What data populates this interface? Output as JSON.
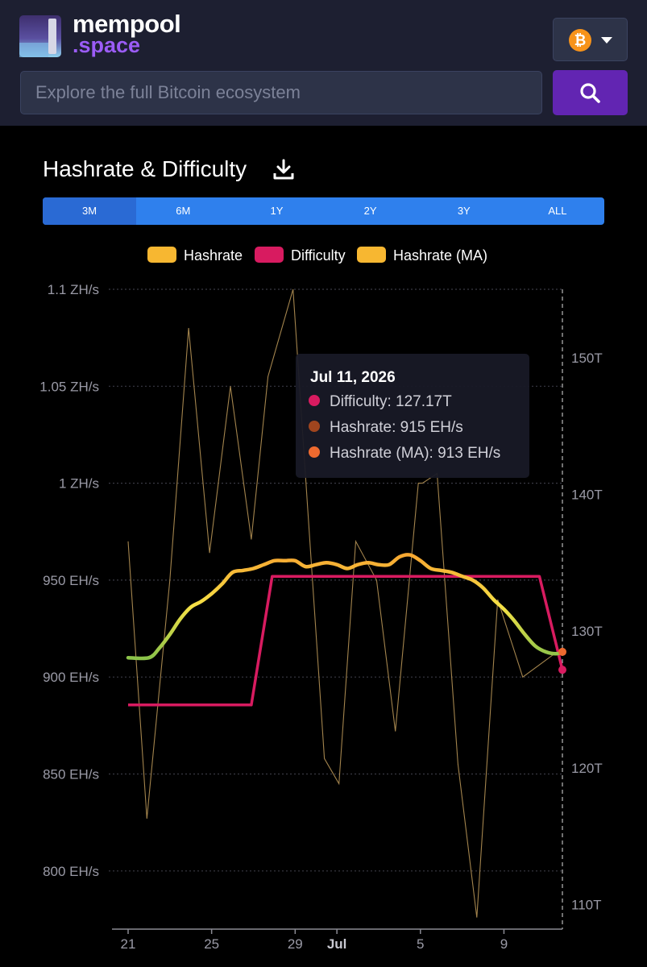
{
  "header": {
    "logo_name": "mempool",
    "logo_sub": ".space",
    "search_placeholder": "Explore the full Bitcoin ecosystem",
    "network_symbol": "₿"
  },
  "title": "Hashrate & Difficulty",
  "ranges": [
    "3M",
    "6M",
    "1Y",
    "2Y",
    "3Y",
    "ALL"
  ],
  "active_range": "3M",
  "legend": [
    {
      "label": "Hashrate",
      "color": "#f7b731"
    },
    {
      "label": "Difficulty",
      "color": "#d81b60"
    },
    {
      "label": "Hashrate (MA)",
      "color": "#f7b731"
    }
  ],
  "tooltip": {
    "date": "Jul 11, 2026",
    "rows": [
      {
        "text": "Difficulty: 127.17T",
        "color": "#d81b60"
      },
      {
        "text": "Hashrate: 915 EH/s",
        "color": "#a0451e"
      },
      {
        "text": "Hashrate (MA): 913 EH/s",
        "color": "#ee6a2f"
      }
    ]
  },
  "chart_data": {
    "type": "line",
    "x_ticks": [
      "21",
      "25",
      "29",
      "Jul",
      "5",
      "9"
    ],
    "x_tick_days": [
      0,
      4,
      8,
      10,
      14,
      18
    ],
    "x_range_days": [
      0,
      20.8
    ],
    "y_left_ticks": [
      "1.1 ZH/s",
      "1.05 ZH/s",
      "1 ZH/s",
      "950 EH/s",
      "900 EH/s",
      "850 EH/s",
      "800 EH/s"
    ],
    "y_left_tick_values": [
      1100,
      1050,
      1000,
      950,
      900,
      850,
      800
    ],
    "y_left_range": [
      770,
      1100
    ],
    "y_left_unit": "EH/s",
    "y_right_ticks": [
      "150T",
      "140T",
      "130T",
      "120T",
      "110T"
    ],
    "y_right_tick_values": [
      150,
      140,
      130,
      120,
      110
    ],
    "y_right_range": [
      108.2,
      155
    ],
    "grid": true,
    "series": [
      {
        "name": "Hashrate",
        "axis": "left",
        "color": "#bf9b5a",
        "x": [
          0,
          0.9,
          2.0,
          2.9,
          3.9,
          4.9,
          5.9,
          6.7,
          7.9,
          9.4,
          10.1,
          10.9,
          11.9,
          12.8,
          13.9,
          14.1,
          14.8,
          15.8,
          16.7,
          17.7,
          18.9,
          20.8
        ],
        "y": [
          970,
          827,
          950,
          1080,
          964,
          1050,
          971,
          1055,
          1100,
          858,
          845,
          970,
          950,
          872,
          1000,
          1000,
          1005,
          855,
          776,
          940,
          900,
          915
        ]
      },
      {
        "name": "Difficulty",
        "axis": "right",
        "color": "#d81b60",
        "x": [
          0,
          5.9,
          6.9,
          19.7,
          20.8
        ],
        "y": [
          124.6,
          124.6,
          134,
          134,
          127.17
        ]
      },
      {
        "name": "Hashrate (MA)",
        "axis": "left",
        "color": "#f7b731",
        "x": [
          0,
          1,
          1.5,
          2,
          2.5,
          3,
          3.5,
          4,
          4.5,
          5,
          5.5,
          6,
          6.5,
          7,
          7.5,
          8,
          8.5,
          9,
          9.5,
          10,
          10.5,
          11,
          11.5,
          12,
          12.5,
          13,
          13.5,
          14,
          14.5,
          15,
          15.5,
          16,
          16.5,
          17,
          17.5,
          18,
          18.5,
          19,
          19.5,
          20,
          20.5,
          20.8
        ],
        "y": [
          910,
          910,
          915,
          922,
          930,
          936,
          939,
          943,
          948,
          954,
          955,
          956,
          958,
          960,
          960,
          960,
          957,
          958,
          959,
          958,
          956,
          958,
          959,
          958,
          958,
          962,
          963,
          960,
          956,
          955,
          954,
          952,
          950,
          946,
          940,
          935,
          929,
          922,
          916,
          913,
          912,
          913
        ]
      }
    ]
  }
}
